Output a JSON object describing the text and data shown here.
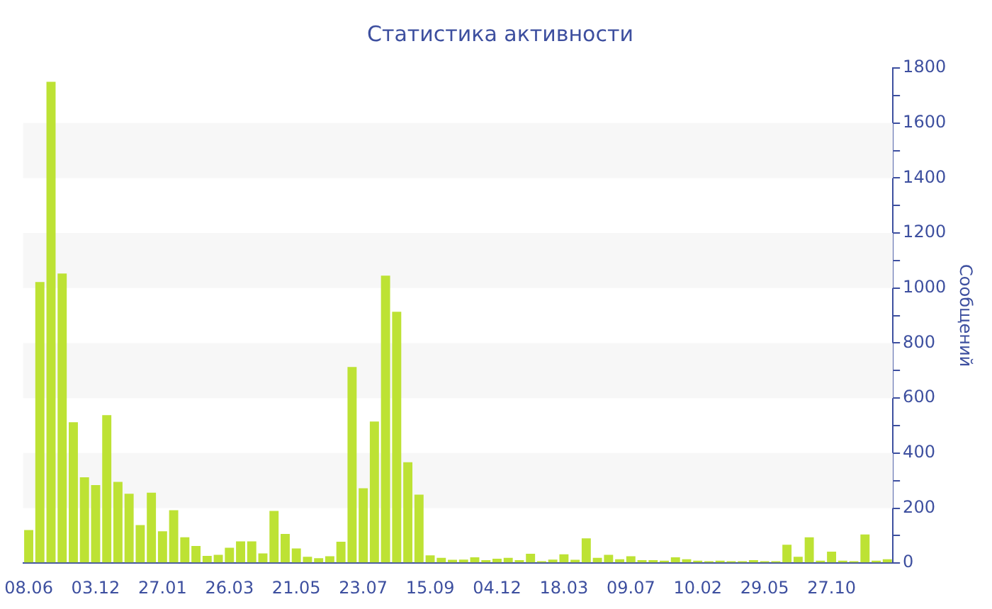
{
  "chart_data": {
    "type": "bar",
    "title": "Статистика активности",
    "ylabel": "Сообщений",
    "categories": [
      "08.06",
      null,
      null,
      null,
      null,
      null,
      "03.12",
      null,
      null,
      null,
      null,
      null,
      "27.01",
      null,
      null,
      null,
      null,
      null,
      "26.03",
      null,
      null,
      null,
      null,
      null,
      "21.05",
      null,
      null,
      null,
      null,
      null,
      "23.07",
      null,
      null,
      null,
      null,
      null,
      "15.09",
      null,
      null,
      null,
      null,
      null,
      "04.12",
      null,
      null,
      null,
      null,
      null,
      "18.03",
      null,
      null,
      null,
      null,
      null,
      "09.07",
      null,
      null,
      null,
      null,
      null,
      "10.02",
      null,
      null,
      null,
      null,
      null,
      "29.05",
      null,
      null,
      null,
      null,
      null,
      "27.10",
      null,
      null,
      null,
      null,
      null
    ],
    "values": [
      120,
      1022,
      1750,
      1053,
      512,
      312,
      284,
      538,
      295,
      252,
      138,
      256,
      116,
      192,
      94,
      62,
      26,
      30,
      56,
      79,
      79,
      35,
      190,
      106,
      53,
      23,
      18,
      25,
      78,
      713,
      272,
      515,
      1045,
      914,
      367,
      249,
      28,
      19,
      12,
      13,
      21,
      11,
      16,
      19,
      11,
      34,
      7,
      13,
      32,
      12,
      90,
      19,
      30,
      14,
      25,
      11,
      11,
      9,
      21,
      14,
      9,
      7,
      9,
      7,
      7,
      11,
      7,
      7,
      67,
      23,
      94,
      9,
      42,
      9,
      7,
      104,
      9,
      14
    ],
    "color": "#bde234",
    "ylim": [
      0,
      1800
    ],
    "yticks": [
      0,
      {
        "value": 100,
        "label": null
      },
      200,
      {
        "value": 300,
        "label": null
      },
      400,
      {
        "value": 500,
        "label": null
      },
      600,
      {
        "value": 700,
        "label": null
      },
      800,
      {
        "value": 900,
        "label": null
      },
      1000,
      {
        "value": 1100,
        "label": null
      },
      1200,
      {
        "value": 1300,
        "label": null
      },
      1400,
      {
        "value": 1500,
        "label": null
      },
      1600,
      {
        "value": 1700,
        "label": null
      },
      1800
    ],
    "bands": [
      {
        "axis": "y",
        "from": 200,
        "to": 400,
        "color": "#f7f7f7"
      },
      {
        "axis": "y",
        "from": 600,
        "to": 800,
        "color": "#f7f7f7"
      },
      {
        "axis": "y",
        "from": 1000,
        "to": 1200,
        "color": "#f7f7f7"
      },
      {
        "axis": "y",
        "from": 1400,
        "to": 1600,
        "color": "#f7f7f7"
      }
    ]
  }
}
